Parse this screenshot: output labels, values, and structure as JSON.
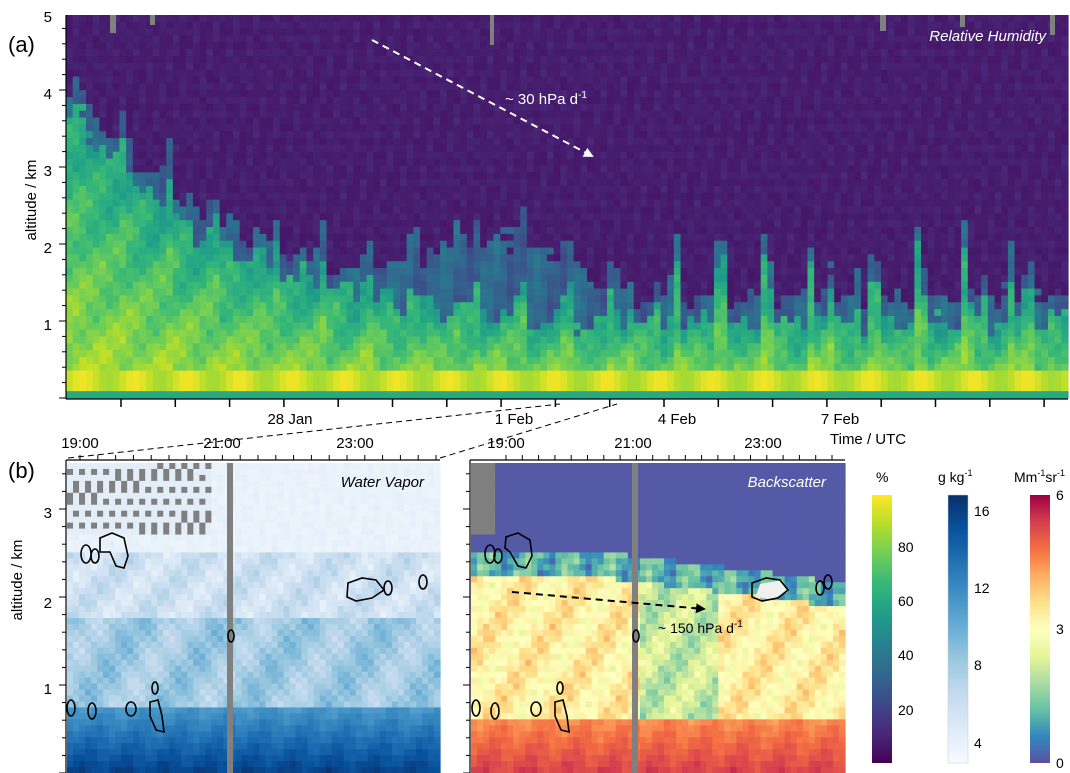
{
  "colors": {
    "viridis": [
      "#440154",
      "#482878",
      "#3e4989",
      "#31688e",
      "#26828e",
      "#1f9e89",
      "#35b779",
      "#6ece58",
      "#b5de2b",
      "#fde725"
    ],
    "blues": [
      "#f7fbff",
      "#deebf7",
      "#c6dbef",
      "#9ecae1",
      "#6baed6",
      "#4292c6",
      "#2171b5",
      "#08519c",
      "#08306b"
    ],
    "spectral": [
      "#5e4fa2",
      "#3288bd",
      "#66c2a5",
      "#abdda4",
      "#e6f598",
      "#ffffbf",
      "#fee08b",
      "#fdae61",
      "#f46d43",
      "#d53e4f",
      "#9e0142"
    ],
    "missing": "#808080",
    "contour": "#000000"
  },
  "panel_a": {
    "label": "(a)",
    "title": "Relative Humidity",
    "ylabel": "altitude / km",
    "yticks": [
      "1",
      "2",
      "3",
      "4",
      "5"
    ],
    "xticks": [
      "28 Jan",
      "1 Feb",
      "4 Feb",
      "7 Feb"
    ],
    "annotation": "~ 30 hPa d",
    "annotation_sup": "-1"
  },
  "panel_b": {
    "label": "(b)",
    "time_label": "Time / UTC",
    "ylabel": "altitude / km",
    "yticks": [
      "1",
      "2",
      "3"
    ],
    "xticks_left": [
      "19:00",
      "21:00",
      "23:00"
    ],
    "xticks_right": [
      "19:00",
      "21:00",
      "23:00"
    ],
    "left_title": "Water Vapor",
    "right_title": "Backscatter",
    "annotation": "~ 150 hPa d",
    "annotation_sup": "-1"
  },
  "colorbars": {
    "rh": {
      "unit": "%",
      "ticks": [
        "20",
        "40",
        "60",
        "80"
      ]
    },
    "wv": {
      "unit": "g kg",
      "unit_sup": "-1",
      "ticks": [
        "4",
        "8",
        "12",
        "16"
      ]
    },
    "bs": {
      "unit": "Mm",
      "unit_sup1": "-1",
      "unit_mid": "sr",
      "unit_sup2": "-1",
      "ticks": [
        "0",
        "3",
        "6"
      ]
    }
  },
  "chart_data": [
    {
      "type": "heatmap",
      "title": "Relative Humidity",
      "ylabel": "altitude / km",
      "xlabel": "",
      "x_ticks": [
        "28 Jan",
        "1 Feb",
        "4 Feb",
        "7 Feb"
      ],
      "ylim": [
        0,
        5
      ],
      "color_unit": "%",
      "color_range": [
        0,
        100
      ],
      "annotation": "~ 30 hPa d-1"
    },
    {
      "type": "heatmap",
      "title": "Water Vapor",
      "xlabel": "Time / UTC",
      "ylabel": "altitude / km",
      "x_ticks": [
        "19:00",
        "21:00",
        "23:00"
      ],
      "ylim": [
        0,
        3.5
      ],
      "color_unit": "g kg-1",
      "color_range": [
        2,
        17
      ]
    },
    {
      "type": "heatmap",
      "title": "Backscatter",
      "xlabel": "Time / UTC",
      "ylabel": "altitude / km",
      "x_ticks": [
        "19:00",
        "21:00",
        "23:00"
      ],
      "ylim": [
        0,
        3.5
      ],
      "color_unit": "Mm-1sr-1",
      "color_range": [
        0,
        6
      ],
      "annotation": "~ 150 hPa d-1"
    }
  ]
}
